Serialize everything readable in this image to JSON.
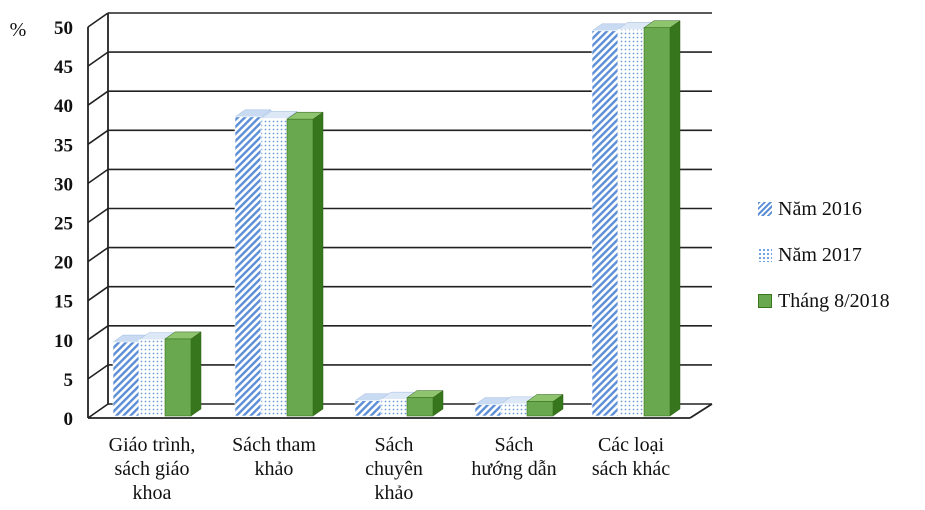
{
  "chart_data": {
    "type": "bar",
    "ylabel": "%",
    "ylim": [
      0,
      50
    ],
    "ytick_step": 5,
    "yticks": [
      "0",
      "5",
      "10",
      "15",
      "20",
      "25",
      "30",
      "35",
      "40",
      "45",
      "50"
    ],
    "categories": [
      [
        "Giáo trình,",
        "sách giáo",
        "khoa"
      ],
      [
        "Sách tham",
        "khảo"
      ],
      [
        "Sách",
        "chuyên",
        "khảo"
      ],
      [
        "Sách",
        "hướng dẫn"
      ],
      [
        "Các loại",
        "sách khác"
      ]
    ],
    "series": [
      {
        "name": "Năm 2016",
        "values": [
          9.2,
          38.0,
          1.7,
          1.2,
          49.0
        ]
      },
      {
        "name": "Năm 2017",
        "values": [
          9.5,
          37.8,
          1.9,
          1.3,
          49.2
        ]
      },
      {
        "name": "Tháng 8/2018",
        "values": [
          9.6,
          37.7,
          2.1,
          1.6,
          49.4
        ]
      }
    ],
    "grid": true,
    "legend_position": "right",
    "colors": {
      "series1": "#5b8ed6",
      "series2": "#6f9fdc",
      "series3": "#6aa84f",
      "series3_dark": "#38761d",
      "grid": "#222222"
    }
  }
}
